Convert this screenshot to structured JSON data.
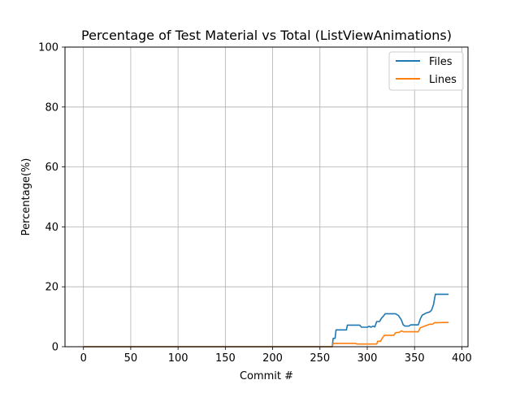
{
  "chart_data": {
    "type": "line",
    "title": "Percentage of Test Material vs Total (ListViewAnimations)",
    "xlabel": "Commit #",
    "ylabel": "Percentage(%)",
    "xlim": [
      -19.5,
      406.5
    ],
    "ylim": [
      0,
      100
    ],
    "xticks": [
      0,
      50,
      100,
      150,
      200,
      250,
      300,
      350,
      400
    ],
    "yticks": [
      0,
      20,
      40,
      60,
      80,
      100
    ],
    "xtick_labels": [
      "0",
      "50",
      "100",
      "150",
      "200",
      "250",
      "300",
      "350",
      "400"
    ],
    "ytick_labels": [
      "0",
      "20",
      "40",
      "60",
      "80",
      "100"
    ],
    "grid": true,
    "legend_position": "top-right",
    "series": [
      {
        "name": "Files",
        "color": "#1f77b4",
        "points": [
          [
            0,
            0
          ],
          [
            263,
            0
          ],
          [
            264,
            2.8
          ],
          [
            266,
            2.8
          ],
          [
            267,
            5.6
          ],
          [
            278,
            5.6
          ],
          [
            279,
            7.2
          ],
          [
            292,
            7.2
          ],
          [
            294,
            6.5
          ],
          [
            300,
            6.5
          ],
          [
            302,
            6.8
          ],
          [
            304,
            6.5
          ],
          [
            306,
            6.9
          ],
          [
            308,
            6.6
          ],
          [
            310,
            8.4
          ],
          [
            313,
            8.4
          ],
          [
            315,
            9.5
          ],
          [
            317,
            10.2
          ],
          [
            319,
            11.0
          ],
          [
            330,
            11.0
          ],
          [
            333,
            10.4
          ],
          [
            336,
            9.0
          ],
          [
            338,
            7.3
          ],
          [
            340,
            6.9
          ],
          [
            344,
            6.9
          ],
          [
            346,
            7.3
          ],
          [
            354,
            7.3
          ],
          [
            356,
            9.2
          ],
          [
            358,
            10.5
          ],
          [
            362,
            11.2
          ],
          [
            366,
            11.6
          ],
          [
            368,
            12.2
          ],
          [
            370,
            14.0
          ],
          [
            372,
            17.5
          ],
          [
            386,
            17.5
          ]
        ]
      },
      {
        "name": "Lines",
        "color": "#ff7f0e",
        "points": [
          [
            0,
            0
          ],
          [
            263,
            0
          ],
          [
            264,
            1.1
          ],
          [
            288,
            1.1
          ],
          [
            289,
            0.9
          ],
          [
            310,
            0.9
          ],
          [
            311,
            1.8
          ],
          [
            314,
            1.8
          ],
          [
            316,
            2.9
          ],
          [
            318,
            3.8
          ],
          [
            328,
            3.8
          ],
          [
            330,
            4.7
          ],
          [
            334,
            4.8
          ],
          [
            336,
            5.3
          ],
          [
            338,
            5.0
          ],
          [
            354,
            5.0
          ],
          [
            356,
            6.3
          ],
          [
            360,
            6.8
          ],
          [
            366,
            7.5
          ],
          [
            369,
            7.5
          ],
          [
            371,
            8.0
          ],
          [
            386,
            8.1
          ]
        ]
      }
    ]
  }
}
